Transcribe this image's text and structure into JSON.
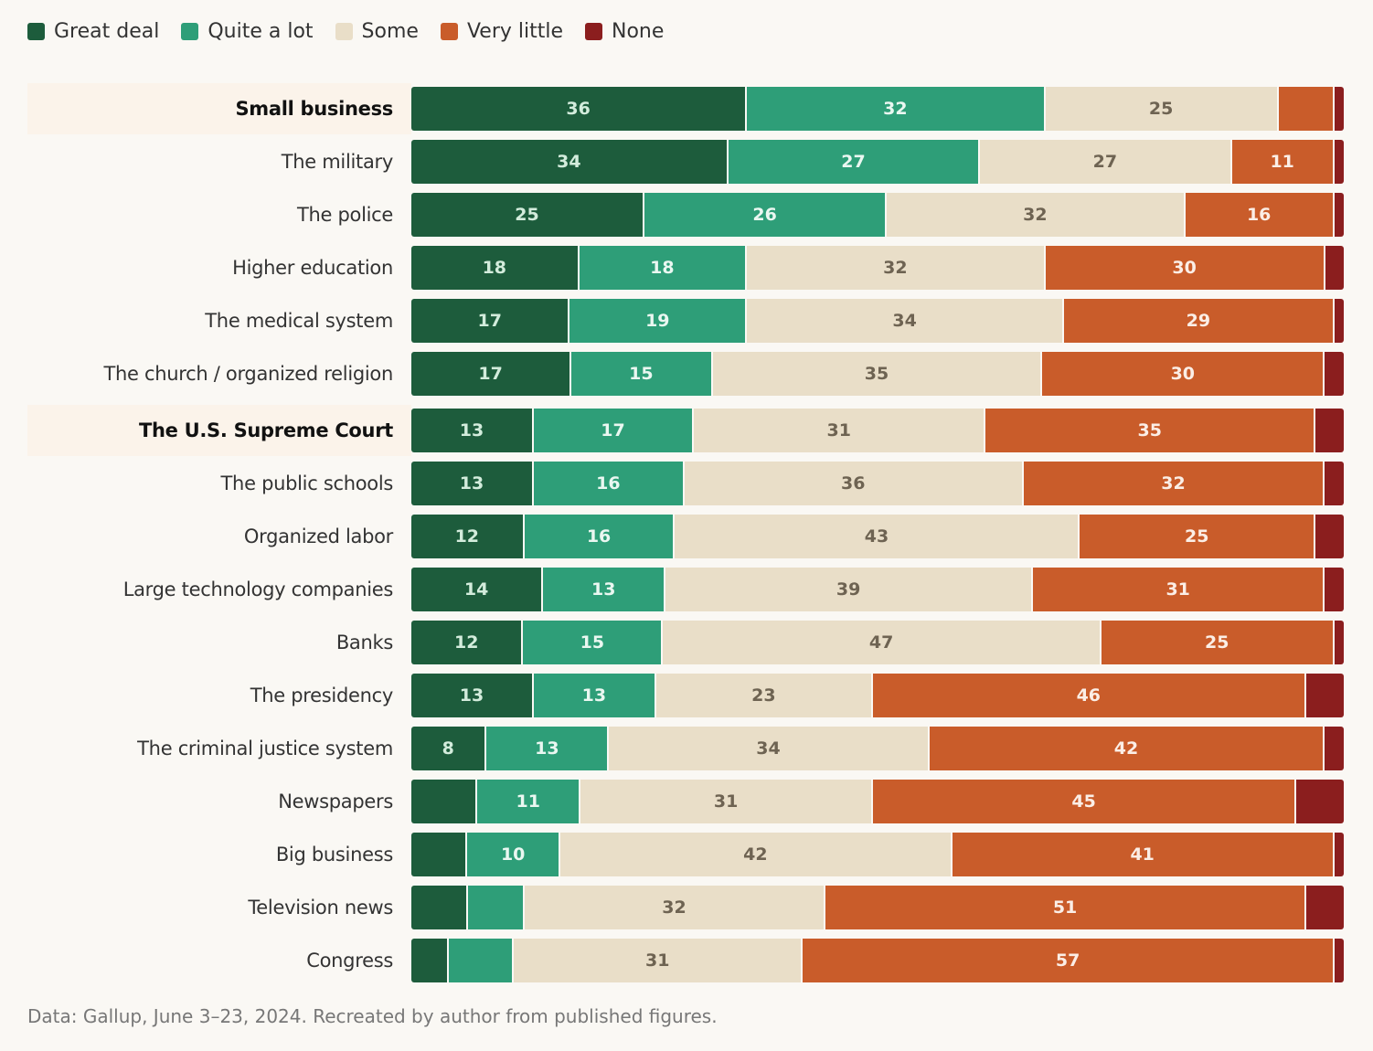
{
  "chart_data": {
    "type": "bar",
    "orientation": "horizontal-stacked",
    "series": [
      {
        "name": "Great deal",
        "color": "#1d5c3c",
        "text": "#d3ecdc"
      },
      {
        "name": "Quite a lot",
        "color": "#2e9e78",
        "text": "#eaf7f1"
      },
      {
        "name": "Some",
        "color": "#e9dec8",
        "text": "#6e6352"
      },
      {
        "name": "Very little",
        "color": "#c95c2a",
        "text": "#fbeee6"
      },
      {
        "name": "None",
        "color": "#8b1e1e",
        "text": "#fbe9e9"
      }
    ],
    "label_min": 8,
    "categories": [
      {
        "name": "Small business",
        "highlight": true,
        "values": [
          36,
          32,
          25,
          6,
          1
        ]
      },
      {
        "name": "The military",
        "highlight": false,
        "values": [
          34,
          27,
          27,
          11,
          1
        ]
      },
      {
        "name": "The police",
        "highlight": false,
        "values": [
          25,
          26,
          32,
          16,
          1
        ]
      },
      {
        "name": "Higher education",
        "highlight": false,
        "values": [
          18,
          18,
          32,
          30,
          2
        ]
      },
      {
        "name": "The medical system",
        "highlight": false,
        "values": [
          17,
          19,
          34,
          29,
          1
        ]
      },
      {
        "name": "The church / organized religion",
        "highlight": false,
        "values": [
          17,
          15,
          35,
          30,
          2
        ]
      },
      {
        "name": "The U.S. Supreme Court",
        "highlight": true,
        "values": [
          13,
          17,
          31,
          35,
          3
        ]
      },
      {
        "name": "The public schools",
        "highlight": false,
        "values": [
          13,
          16,
          36,
          32,
          2
        ]
      },
      {
        "name": "Organized labor",
        "highlight": false,
        "values": [
          12,
          16,
          43,
          25,
          3
        ]
      },
      {
        "name": "Large technology companies",
        "highlight": false,
        "values": [
          14,
          13,
          39,
          31,
          2
        ]
      },
      {
        "name": "Banks",
        "highlight": false,
        "values": [
          12,
          15,
          47,
          25,
          1
        ]
      },
      {
        "name": "The presidency",
        "highlight": false,
        "values": [
          13,
          13,
          23,
          46,
          4
        ]
      },
      {
        "name": "The criminal justice system",
        "highlight": false,
        "values": [
          8,
          13,
          34,
          42,
          2
        ]
      },
      {
        "name": "Newspapers",
        "highlight": false,
        "values": [
          7,
          11,
          31,
          45,
          5
        ]
      },
      {
        "name": "Big business",
        "highlight": false,
        "values": [
          6,
          10,
          42,
          41,
          1
        ]
      },
      {
        "name": "Television news",
        "highlight": false,
        "values": [
          6,
          6,
          32,
          51,
          4
        ]
      },
      {
        "name": "Congress",
        "highlight": false,
        "values": [
          4,
          7,
          31,
          57,
          1
        ]
      }
    ],
    "legend_position": "top-left",
    "grid": false
  },
  "source": "Data: Gallup, June 3–23, 2024. Recreated by author from published figures."
}
